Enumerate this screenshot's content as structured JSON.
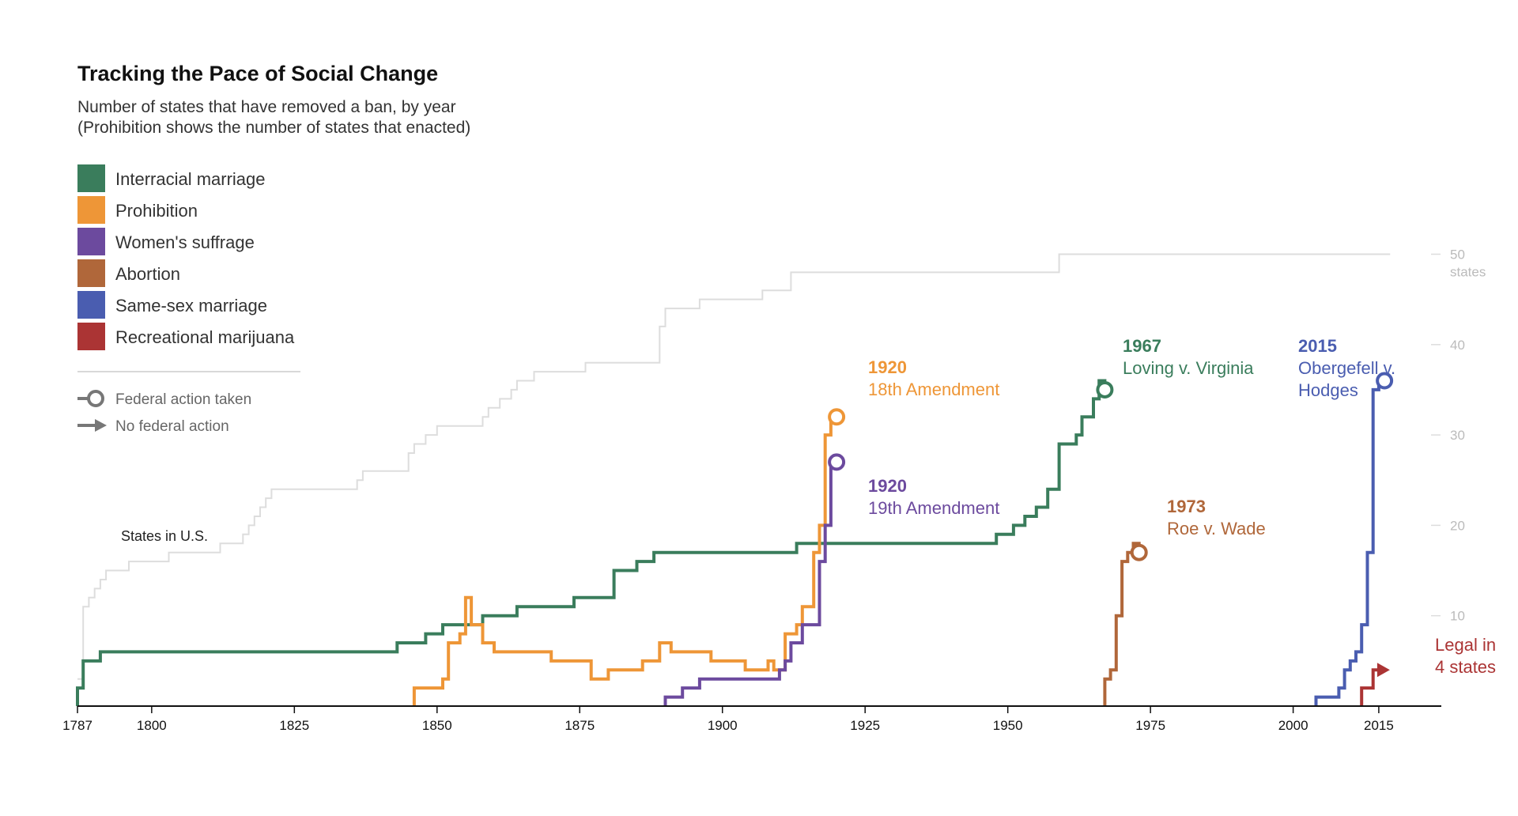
{
  "colors": {
    "interracial_marriage": "#3a7d5c",
    "prohibition": "#ee9637",
    "womens_suffrage": "#6c4a9e",
    "abortion": "#b0673a",
    "same_sex_marriage": "#4a5db0",
    "recreational_marijuana": "#ab3434",
    "states_in_us": "#dddddd",
    "axis": "#111111",
    "key_marker": "#777777"
  },
  "chart_data": {
    "type": "line",
    "title": "Tracking the Pace of Social Change",
    "subtitle_lines": [
      "Number of states that have removed a ban, by year",
      "(Prohibition shows the number of states that enacted)"
    ],
    "xlim": [
      1787,
      2020
    ],
    "ylim": [
      0,
      50
    ],
    "x_ticks": [
      1787,
      1800,
      1825,
      1850,
      1875,
      1900,
      1925,
      1950,
      1975,
      2000,
      2015
    ],
    "y_ticks": [
      {
        "value": 10,
        "label": "10"
      },
      {
        "value": 20,
        "label": "20"
      },
      {
        "value": 30,
        "label": "30"
      },
      {
        "value": 40,
        "label": "40"
      },
      {
        "value": 50,
        "label": "50"
      }
    ],
    "y_unit_label": "states",
    "legend_position": "top-left",
    "key_items": [
      {
        "id": "federal",
        "label": "Federal action taken",
        "marker": "circle"
      },
      {
        "id": "nofederal",
        "label": "No federal action",
        "marker": "arrow"
      }
    ],
    "states_series": {
      "label": "States in U.S.",
      "step": true,
      "points": [
        [
          1787,
          3
        ],
        [
          1788,
          11
        ],
        [
          1789,
          12
        ],
        [
          1790,
          13
        ],
        [
          1791,
          14
        ],
        [
          1792,
          15
        ],
        [
          1796,
          16
        ],
        [
          1803,
          17
        ],
        [
          1812,
          18
        ],
        [
          1816,
          19
        ],
        [
          1817,
          20
        ],
        [
          1818,
          21
        ],
        [
          1819,
          22
        ],
        [
          1820,
          23
        ],
        [
          1821,
          24
        ],
        [
          1836,
          25
        ],
        [
          1837,
          26
        ],
        [
          1845,
          28
        ],
        [
          1846,
          29
        ],
        [
          1848,
          30
        ],
        [
          1850,
          31
        ],
        [
          1858,
          32
        ],
        [
          1859,
          33
        ],
        [
          1861,
          34
        ],
        [
          1863,
          35
        ],
        [
          1864,
          36
        ],
        [
          1867,
          37
        ],
        [
          1876,
          38
        ],
        [
          1889,
          42
        ],
        [
          1890,
          44
        ],
        [
          1896,
          45
        ],
        [
          1907,
          46
        ],
        [
          1912,
          48
        ],
        [
          1959,
          50
        ],
        [
          2017,
          50
        ]
      ]
    },
    "series": [
      {
        "id": "interracial_marriage",
        "name": "Interracial marriage",
        "points": [
          [
            1787,
            2
          ],
          [
            1788,
            5
          ],
          [
            1791,
            6
          ],
          [
            1843,
            7
          ],
          [
            1848,
            8
          ],
          [
            1851,
            9
          ],
          [
            1858,
            10
          ],
          [
            1864,
            11
          ],
          [
            1874,
            12
          ],
          [
            1881,
            15
          ],
          [
            1885,
            16
          ],
          [
            1888,
            17
          ],
          [
            1913,
            18
          ],
          [
            1948,
            19
          ],
          [
            1951,
            20
          ],
          [
            1953,
            21
          ],
          [
            1955,
            22
          ],
          [
            1957,
            24
          ],
          [
            1959,
            29
          ],
          [
            1962,
            30
          ],
          [
            1963,
            32
          ],
          [
            1965,
            34
          ],
          [
            1966,
            36
          ],
          [
            1967,
            35
          ]
        ],
        "end_marker": "circle"
      },
      {
        "id": "prohibition",
        "name": "Prohibition",
        "points": [
          [
            1846,
            2
          ],
          [
            1851,
            3
          ],
          [
            1852,
            7
          ],
          [
            1854,
            8
          ],
          [
            1855,
            12
          ],
          [
            1856,
            9
          ],
          [
            1858,
            7
          ],
          [
            1860,
            6
          ],
          [
            1864,
            6
          ],
          [
            1870,
            5
          ],
          [
            1877,
            3
          ],
          [
            1880,
            4
          ],
          [
            1886,
            5
          ],
          [
            1889,
            7
          ],
          [
            1891,
            6
          ],
          [
            1895,
            6
          ],
          [
            1898,
            5
          ],
          [
            1904,
            4
          ],
          [
            1908,
            5
          ],
          [
            1909,
            4
          ],
          [
            1911,
            8
          ],
          [
            1913,
            9
          ],
          [
            1914,
            11
          ],
          [
            1916,
            17
          ],
          [
            1917,
            20
          ],
          [
            1918,
            30
          ],
          [
            1919,
            32
          ],
          [
            1920,
            32
          ]
        ],
        "end_marker": "circle"
      },
      {
        "id": "womens_suffrage",
        "name": "Women's suffrage",
        "points": [
          [
            1890,
            1
          ],
          [
            1893,
            2
          ],
          [
            1896,
            3
          ],
          [
            1910,
            4
          ],
          [
            1911,
            5
          ],
          [
            1912,
            7
          ],
          [
            1914,
            9
          ],
          [
            1917,
            16
          ],
          [
            1918,
            20
          ],
          [
            1919,
            27
          ],
          [
            1920,
            27
          ]
        ],
        "end_marker": "circle"
      },
      {
        "id": "abortion",
        "name": "Abortion",
        "points": [
          [
            1967,
            3
          ],
          [
            1968,
            4
          ],
          [
            1969,
            10
          ],
          [
            1970,
            16
          ],
          [
            1971,
            17
          ],
          [
            1972,
            18
          ],
          [
            1973,
            17
          ]
        ],
        "end_marker": "circle"
      },
      {
        "id": "same_sex_marriage",
        "name": "Same-sex marriage",
        "points": [
          [
            2004,
            1
          ],
          [
            2008,
            2
          ],
          [
            2009,
            4
          ],
          [
            2010,
            5
          ],
          [
            2011,
            6
          ],
          [
            2012,
            9
          ],
          [
            2013,
            17
          ],
          [
            2014,
            35
          ],
          [
            2015,
            36
          ],
          [
            2016,
            36
          ]
        ],
        "end_marker": "circle"
      },
      {
        "id": "recreational_marijuana",
        "name": "Recreational marijuana",
        "points": [
          [
            2012,
            2
          ],
          [
            2014,
            4
          ],
          [
            2015,
            4
          ]
        ],
        "end_marker": "arrow"
      }
    ],
    "annotations": [
      {
        "series": "prohibition",
        "year_label": "1920",
        "text_lines": [
          "18th Amendment"
        ]
      },
      {
        "series": "womens_suffrage",
        "year_label": "1920",
        "text_lines": [
          "19th Amendment"
        ]
      },
      {
        "series": "interracial_marriage",
        "year_label": "1967",
        "text_lines": [
          "Loving v. Virginia"
        ]
      },
      {
        "series": "abortion",
        "year_label": "1973",
        "text_lines": [
          "Roe v. Wade"
        ]
      },
      {
        "series": "same_sex_marriage",
        "year_label": "2015",
        "text_lines": [
          "Obergefell v.",
          "Hodges"
        ]
      },
      {
        "series": "recreational_marijuana",
        "year_label": "",
        "text_lines": [
          "Legal in",
          "4 states"
        ]
      }
    ]
  }
}
